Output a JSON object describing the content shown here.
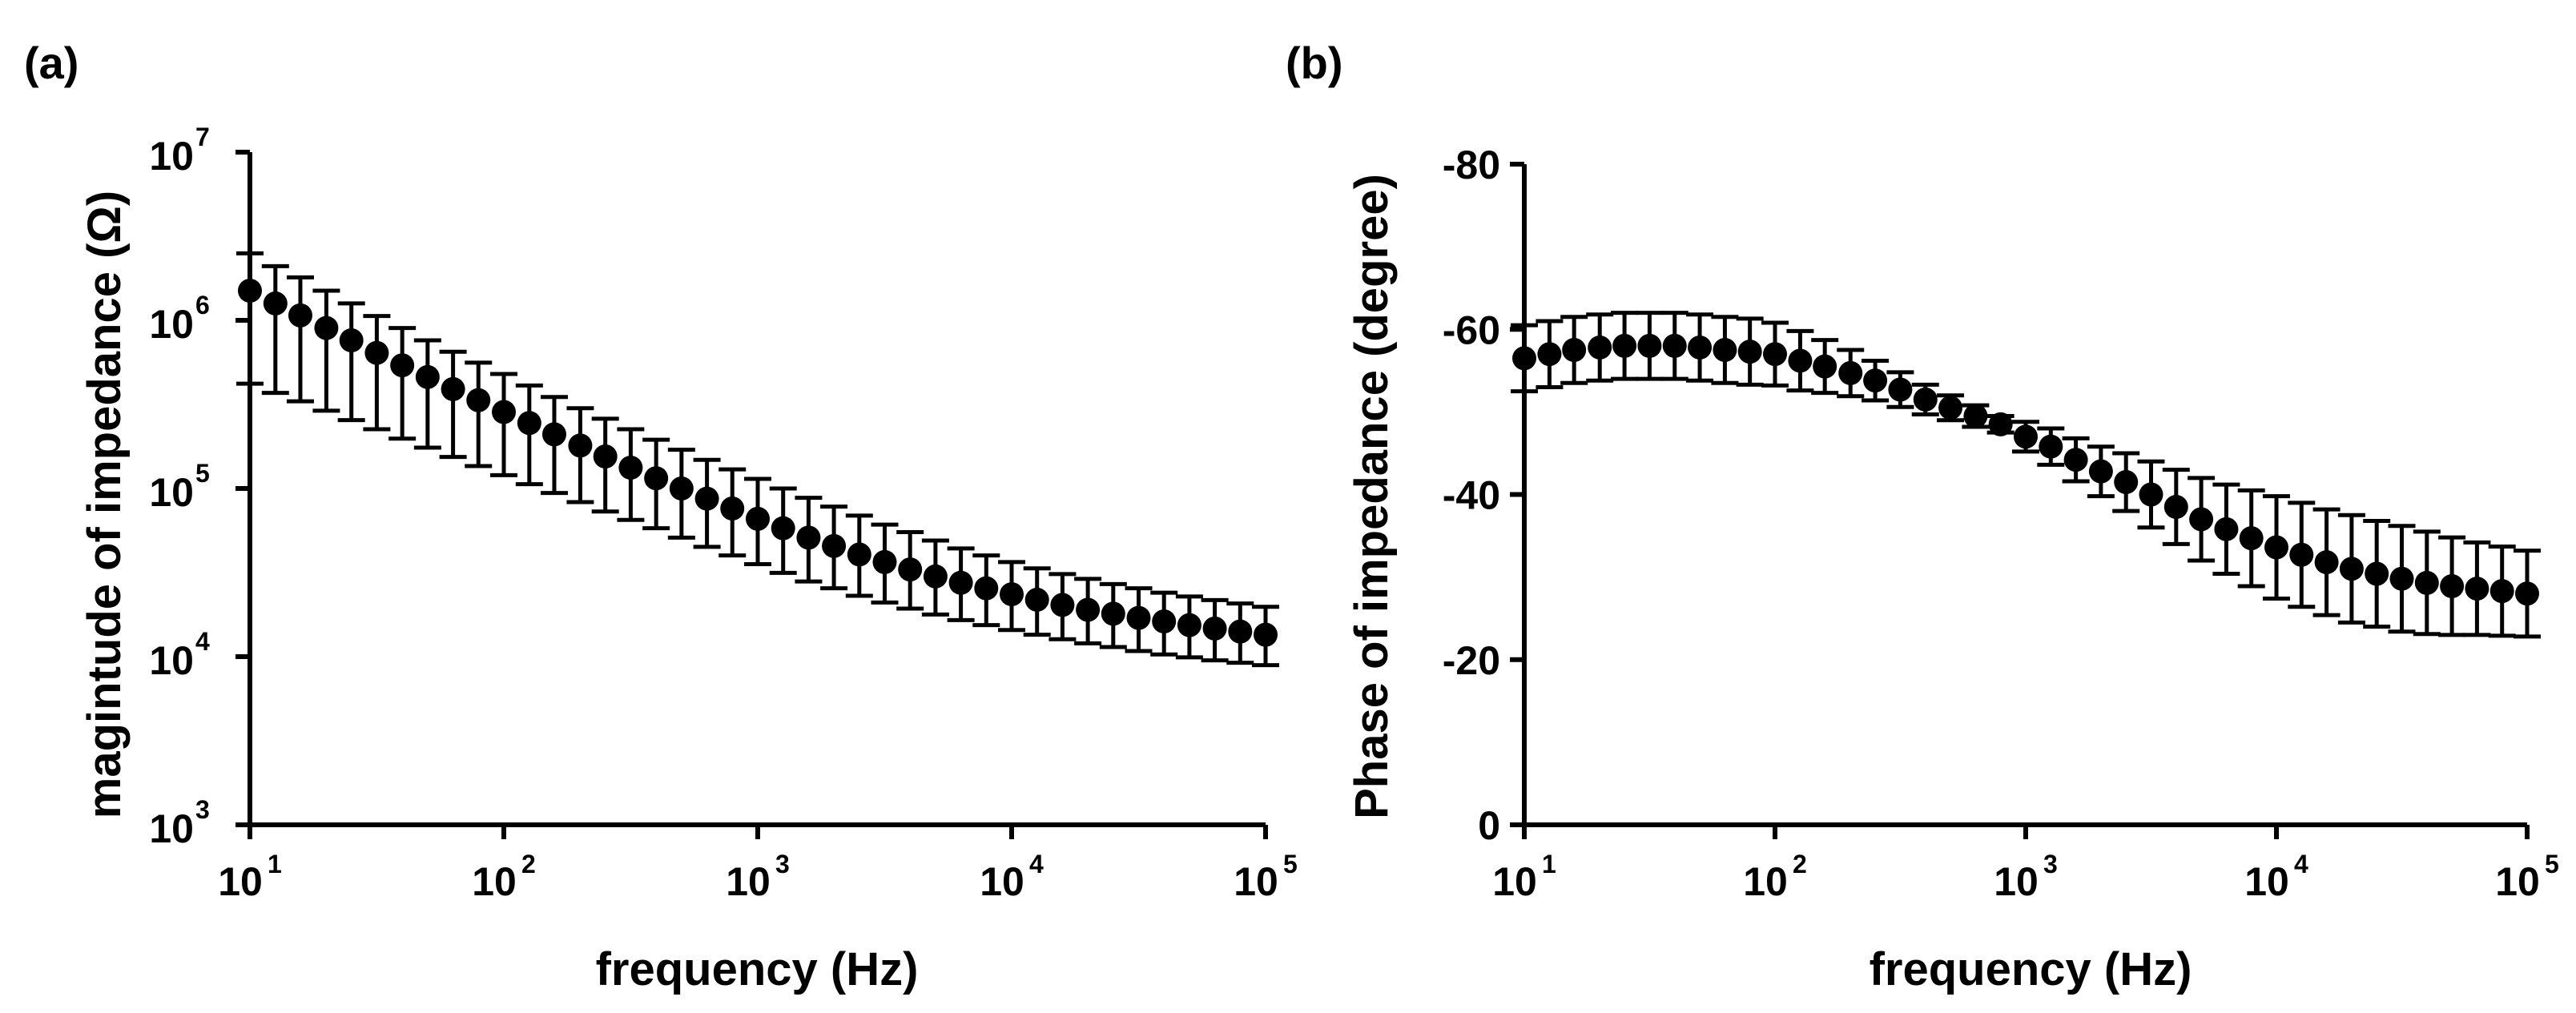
{
  "chart_data": [
    {
      "panel_label": "(a)",
      "type": "scatter",
      "xscale": "log",
      "yscale": "log",
      "xlabel": "frequency (Hz)",
      "ylabel": "magintude of impedance (Ω)",
      "xlim": [
        10,
        100000
      ],
      "ylim": [
        1000,
        10000000
      ],
      "x_ticks": [
        {
          "base": "10",
          "exp": "1"
        },
        {
          "base": "10",
          "exp": "2"
        },
        {
          "base": "10",
          "exp": "3"
        },
        {
          "base": "10",
          "exp": "4"
        },
        {
          "base": "10",
          "exp": "5"
        }
      ],
      "y_ticks": [
        {
          "base": "10",
          "exp": "3"
        },
        {
          "base": "10",
          "exp": "4"
        },
        {
          "base": "10",
          "exp": "5"
        },
        {
          "base": "10",
          "exp": "6"
        },
        {
          "base": "10",
          "exp": "7"
        }
      ],
      "x": [
        10,
        12.6,
        15.8,
        20,
        25.1,
        31.6,
        39.8,
        50.1,
        63.1,
        79.4,
        100,
        126,
        158,
        200,
        251,
        316,
        398,
        501,
        631,
        794,
        1000,
        1259,
        1585,
        1995,
        2512,
        3162,
        3981,
        5012,
        6310,
        7943,
        10000,
        12589,
        15849,
        19953,
        25119,
        31623,
        39811,
        50119,
        63096,
        79433,
        100000
      ],
      "y": [
        1500000,
        1260000,
        1070000,
        900000,
        760000,
        640000,
        540000,
        460000,
        390000,
        335000,
        285000,
        245000,
        210000,
        180000,
        155000,
        133000,
        115000,
        100000,
        87000,
        76000,
        66000,
        58000,
        51000,
        45500,
        40500,
        36500,
        33000,
        30000,
        27500,
        25500,
        23500,
        21800,
        20300,
        19000,
        18000,
        17000,
        16200,
        15400,
        14700,
        14100,
        13500
      ],
      "y_upper": [
        2500000,
        2100000,
        1800000,
        1500000,
        1260000,
        1060000,
        900000,
        760000,
        650000,
        560000,
        480000,
        410000,
        350000,
        300000,
        260000,
        225000,
        195000,
        170000,
        148000,
        130000,
        114000,
        100000,
        88000,
        78000,
        69000,
        61000,
        55000,
        49000,
        44000,
        40000,
        36500,
        33500,
        31000,
        29000,
        27000,
        25500,
        24000,
        22800,
        21700,
        20700,
        19800
      ],
      "y_lower": [
        420000,
        370000,
        330000,
        290000,
        255000,
        225000,
        198000,
        175000,
        154000,
        136000,
        120000,
        106000,
        94000,
        83000,
        73000,
        65000,
        58000,
        51000,
        45000,
        40000,
        35500,
        31500,
        28000,
        25500,
        23000,
        21000,
        19300,
        17800,
        16500,
        15400,
        14400,
        13500,
        12700,
        12000,
        11400,
        10800,
        10300,
        9900,
        9500,
        9200,
        8900
      ]
    },
    {
      "panel_label": "(b)",
      "type": "scatter",
      "xscale": "log",
      "yscale": "linear",
      "xlabel": "frequency (Hz)",
      "ylabel": "Phase of impedance (degree)",
      "xlim": [
        10,
        100000
      ],
      "ylim": [
        0,
        -80
      ],
      "x_ticks": [
        {
          "base": "10",
          "exp": "1"
        },
        {
          "base": "10",
          "exp": "2"
        },
        {
          "base": "10",
          "exp": "3"
        },
        {
          "base": "10",
          "exp": "4"
        },
        {
          "base": "10",
          "exp": "5"
        }
      ],
      "y_ticks": [
        "0",
        "-20",
        "-40",
        "-60",
        "-80"
      ],
      "y_tick_values": [
        0,
        -20,
        -40,
        -60,
        -80
      ],
      "x": [
        10,
        12.6,
        15.8,
        20,
        25.1,
        31.6,
        39.8,
        50.1,
        63.1,
        79.4,
        100,
        126,
        158,
        200,
        251,
        316,
        398,
        501,
        631,
        794,
        1000,
        1259,
        1585,
        1995,
        2512,
        3162,
        3981,
        5012,
        6310,
        7943,
        10000,
        12589,
        15849,
        19953,
        25119,
        31623,
        39811,
        50119,
        63096,
        79433,
        100000
      ],
      "y": [
        -56.5,
        -57,
        -57.5,
        -57.8,
        -58,
        -58,
        -58,
        -57.8,
        -57.5,
        -57.3,
        -57,
        -56.2,
        -55.5,
        -54.7,
        -53.8,
        -52.7,
        -51.5,
        -50.5,
        -49.5,
        -48.5,
        -47,
        -45.8,
        -44.2,
        -42.8,
        -41.5,
        -40,
        -38.5,
        -37,
        -35.8,
        -34.7,
        -33.6,
        -32.7,
        -31.8,
        -31,
        -30.4,
        -29.8,
        -29.3,
        -28.9,
        -28.6,
        -28.3,
        -28
      ],
      "y_upper": [
        -60.5,
        -61,
        -61.5,
        -61.8,
        -62,
        -62,
        -62,
        -61.8,
        -61.5,
        -61.3,
        -60.8,
        -59.8,
        -58.7,
        -57.5,
        -56.2,
        -54.8,
        -53.3,
        -52,
        -50.8,
        -49.5,
        -48.8,
        -48,
        -46.8,
        -45.8,
        -45,
        -44,
        -43,
        -42,
        -41.2,
        -40.5,
        -39.8,
        -39,
        -38.2,
        -37.5,
        -36.8,
        -36.2,
        -35.5,
        -34.8,
        -34.2,
        -33.7,
        -33.2
      ],
      "y_lower": [
        -52.5,
        -53,
        -53.5,
        -53.8,
        -54,
        -54,
        -54,
        -53.8,
        -53.5,
        -53.3,
        -53.2,
        -52.6,
        -52.3,
        -51.9,
        -51.4,
        -50.6,
        -49.7,
        -49,
        -48.2,
        -47.5,
        -45.2,
        -43.6,
        -41.6,
        -39.8,
        -38,
        -36,
        -34,
        -32,
        -30.4,
        -28.9,
        -27.4,
        -26.4,
        -25.4,
        -24.5,
        -24,
        -23.4,
        -23.1,
        -23,
        -23,
        -22.9,
        -22.8
      ]
    }
  ]
}
